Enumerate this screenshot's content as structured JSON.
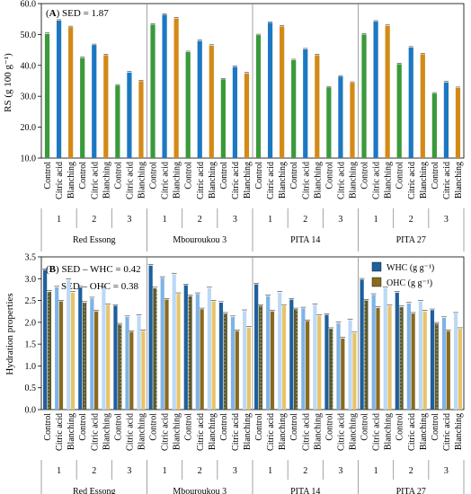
{
  "colors": {
    "rs_bar": [
      "#3a9a3a",
      "#1c78c2",
      "#d38a17"
    ],
    "whc_bar": [
      "#1e5f9e",
      "#7fb3e6",
      "#bcd9f4"
    ],
    "ohc_bar": [
      "#5b5a2e",
      "#8a6a1e",
      "#e8c36a"
    ],
    "frame": "#000000",
    "divider": "#8c8c8c"
  },
  "chart_data": [
    {
      "type": "bar",
      "panel_label": "A",
      "annotation": "SED = 1.87",
      "ylabel": "RS (g 100 g⁻¹)",
      "ylim": [
        10,
        60
      ],
      "yticks": [
        "10.0",
        "20.0",
        "30.0",
        "40.0",
        "50.0",
        "60.0"
      ],
      "grid": false,
      "categories": [
        "Control",
        "Citric acid",
        "Blanching",
        "Control",
        "Citric acid",
        "Blanching",
        "Control",
        "Citric acid",
        "Blanching",
        "Control",
        "Citric acid",
        "Blanching",
        "Control",
        "Citric acid",
        "Blanching",
        "Control",
        "Citric acid",
        "Blanching",
        "Control",
        "Citric acid",
        "Blanching",
        "Control",
        "Citric acid",
        "Blanching",
        "Control",
        "Citric acid",
        "Blanching",
        "Control",
        "Citric acid",
        "Blanching",
        "Control",
        "Citric acid",
        "Blanching",
        "Control",
        "Citric acid",
        "Blanching"
      ],
      "levels": [
        "1",
        "2",
        "3"
      ],
      "groups": [
        "Red Essong",
        "Mbouroukou 3",
        "PITA 14",
        "PITA 27"
      ],
      "values": [
        50.2,
        54.5,
        52.4,
        42.4,
        46.6,
        43.3,
        33.5,
        37.7,
        34.9,
        53.2,
        56.4,
        55.2,
        44.3,
        47.9,
        46.4,
        35.5,
        39.5,
        37.4,
        49.8,
        53.8,
        52.6,
        41.7,
        45.2,
        43.3,
        32.9,
        36.4,
        34.4,
        50.0,
        54.2,
        52.8,
        40.4,
        45.8,
        43.6,
        30.9,
        34.5,
        32.7
      ]
    },
    {
      "type": "bar",
      "panel_label": "B",
      "annotations": [
        "SED – WHC = 0.42",
        "SED – OHC = 0.38"
      ],
      "ylabel": "Hydration properties",
      "ylim": [
        0,
        3.5
      ],
      "yticks": [
        "0.0",
        "0.5",
        "1.0",
        "1.5",
        "2.0",
        "2.5",
        "3.0",
        "3.5"
      ],
      "grid": false,
      "legend_position": "top-right",
      "categories": [
        "Control",
        "Citric acid",
        "Blanching",
        "Control",
        "Citric acid",
        "Blanching",
        "Control",
        "Citric acid",
        "Blanching",
        "Control",
        "Citric acid",
        "Blanching",
        "Control",
        "Citric acid",
        "Blanching",
        "Control",
        "Citric acid",
        "Blanching",
        "Control",
        "Citric acid",
        "Blanching",
        "Control",
        "Citric acid",
        "Blanching",
        "Control",
        "Citric acid",
        "Blanching",
        "Control",
        "Citric acid",
        "Blanching",
        "Control",
        "Citric acid",
        "Blanching",
        "Control",
        "Citric acid",
        "Blanching"
      ],
      "levels": [
        "1",
        "2",
        "3"
      ],
      "groups": [
        "Red Essong",
        "Mbouroukou 3",
        "PITA 14",
        "PITA 27"
      ],
      "series": [
        {
          "name": "WHC (g g⁻¹)",
          "values": [
            3.2,
            2.8,
            2.97,
            2.8,
            2.55,
            2.78,
            2.38,
            2.12,
            2.15,
            3.3,
            3.02,
            3.1,
            2.85,
            2.65,
            2.78,
            2.45,
            2.12,
            2.26,
            2.87,
            2.6,
            2.68,
            2.52,
            2.32,
            2.4,
            2.17,
            1.98,
            2.05,
            2.98,
            2.63,
            2.78,
            2.68,
            2.43,
            2.48,
            2.28,
            2.1,
            2.2
          ]
        },
        {
          "name": "OHC (g g⁻¹)",
          "values": [
            2.7,
            2.48,
            2.68,
            2.45,
            2.25,
            2.4,
            1.95,
            1.78,
            1.8,
            2.78,
            2.52,
            2.65,
            2.6,
            2.3,
            2.48,
            2.2,
            1.8,
            1.88,
            2.38,
            2.25,
            2.38,
            2.3,
            2.03,
            2.15,
            1.85,
            1.63,
            1.75,
            2.5,
            2.33,
            2.38,
            2.35,
            2.2,
            2.25,
            1.97,
            1.8,
            1.85
          ]
        }
      ]
    }
  ]
}
